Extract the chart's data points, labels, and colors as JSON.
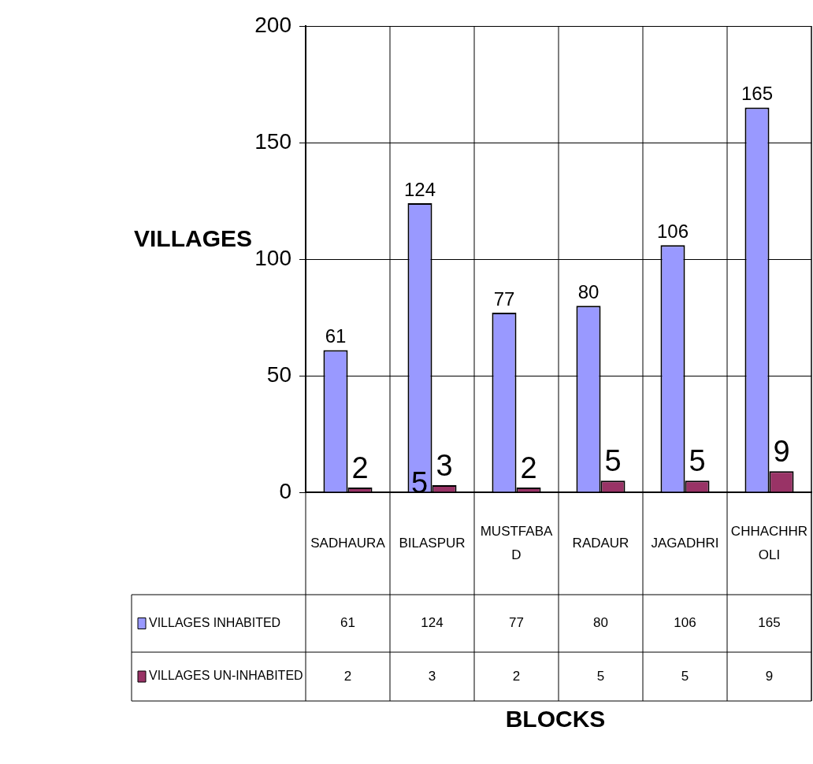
{
  "chart_data": {
    "type": "bar",
    "ylabel": "VILLAGES",
    "categories": [
      "SADHAURA",
      "BILASPUR",
      "MUSTFABAD",
      "RADAUR",
      "JAGADHRI",
      "CHHACHHROLI"
    ],
    "series": [
      {
        "name": "VILLAGES INHABITED",
        "color": "#9999ff",
        "values": [
          61,
          124,
          77,
          80,
          106,
          165
        ]
      },
      {
        "name": "VILLAGES UN-INHABITED",
        "color": "#993366",
        "values": [
          2,
          3,
          2,
          5,
          5,
          9
        ]
      }
    ],
    "ylim": [
      0,
      200
    ],
    "yticks": [
      0,
      50,
      100,
      150,
      200
    ],
    "grid": true,
    "legend": "bottom",
    "data_labels": true,
    "annotations": [
      {
        "text": "5",
        "x": "BILASPUR",
        "y": 0
      },
      "61",
      "124",
      "77",
      "80",
      "106",
      "165",
      "2",
      "3",
      "2",
      "5",
      "5",
      "9",
      "BLOCKS"
    ]
  }
}
